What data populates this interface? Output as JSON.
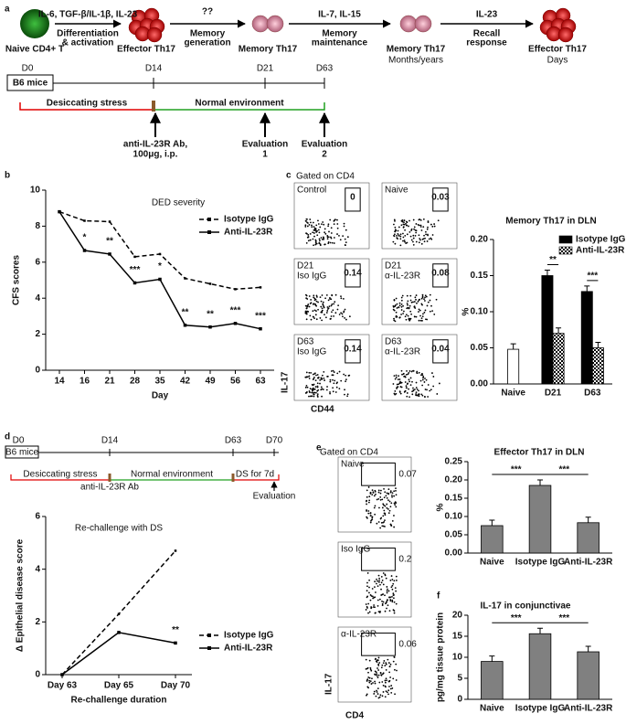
{
  "panel_labels": [
    "a",
    "b",
    "c",
    "d",
    "e",
    "f"
  ],
  "diagram_a": {
    "cells": [
      {
        "label": "Naive CD4+ T"
      },
      {
        "label": "Effector Th17"
      },
      {
        "label": "Memory Th17"
      },
      {
        "label": "Memory Th17",
        "note": "Months/years"
      },
      {
        "label": "Effector Th17",
        "note": "Days"
      }
    ],
    "steps": [
      {
        "above": "IL-6, TGF-β/IL-1β, IL-23",
        "below": [
          "Differentiation",
          "& activation"
        ]
      },
      {
        "above": "??",
        "below": [
          "Memory",
          "generation"
        ]
      },
      {
        "above": "IL-7, IL-15",
        "below": [
          "Memory",
          "maintenance"
        ]
      },
      {
        "above": "IL-23",
        "below": [
          "Recall",
          "response"
        ]
      }
    ],
    "timeline": {
      "days": [
        "D0",
        "D14",
        "D21",
        "D63"
      ],
      "mice": "B6 mice",
      "stress": "Desiccating stress",
      "normal": "Normal environment",
      "events": [
        [
          "anti-IL-23R Ab,",
          "100μg, i.p."
        ],
        [
          "Evaluation",
          "1"
        ],
        [
          "Evaluation",
          "2"
        ]
      ]
    }
  },
  "timeline_d": {
    "days": [
      "D0",
      "D14",
      "D63",
      "D70"
    ],
    "mice": "B6 mice",
    "stress": "Desiccating stress",
    "normal": "Normal environment",
    "rechallenge": "DS for 7d",
    "treatment": "anti-IL-23R Ab",
    "evaluation": "Evaluation"
  },
  "flow_c": {
    "gated": "Gated on CD4",
    "y_label": "IL-17",
    "x_label": "CD44",
    "plots": [
      {
        "labels": [
          "Control"
        ],
        "gate": 0
      },
      {
        "labels": [
          "Naive"
        ],
        "gate": 0.03
      },
      {
        "labels": [
          "D21",
          "Iso IgG"
        ],
        "gate": 0.14
      },
      {
        "labels": [
          "D21",
          "α-IL-23R"
        ],
        "gate": 0.08
      },
      {
        "labels": [
          "D63",
          "Iso IgG"
        ],
        "gate": 0.14
      },
      {
        "labels": [
          "D63",
          "α-IL-23R"
        ],
        "gate": 0.04
      }
    ]
  },
  "flow_e": {
    "gated": "Gated on CD4",
    "y_label": "IL-17",
    "x_label": "CD4",
    "plots": [
      {
        "labels": [
          "Naive"
        ],
        "gate": 0.07
      },
      {
        "labels": [
          "Iso IgG"
        ],
        "gate": 0.2
      },
      {
        "labels": [
          "α-IL-23R"
        ],
        "gate": 0.06
      }
    ]
  },
  "chart_data": [
    {
      "type": "line",
      "title": "DED severity",
      "x_label": "Day",
      "y_label": "CFS scores",
      "categories": [
        "14",
        "16",
        "21",
        "28",
        "35",
        "42",
        "49",
        "56",
        "63"
      ],
      "series": [
        {
          "name": "Isotype IgG",
          "color": "#000000",
          "dashed": true,
          "values": [
            8.8,
            8.3,
            8.25,
            6.3,
            6.45,
            5.1,
            4.8,
            4.5,
            4.6
          ]
        },
        {
          "name": "Anti-IL-23R",
          "color": "#000000",
          "dashed": false,
          "values": [
            8.8,
            6.65,
            6.45,
            4.85,
            5.05,
            2.5,
            2.4,
            2.6,
            2.3
          ]
        }
      ],
      "annotations": [
        null,
        "*",
        "**",
        "***",
        "*",
        "**",
        "**",
        "***",
        "***"
      ],
      "ylim": [
        0,
        10
      ],
      "yticks": [
        0,
        2,
        4,
        6,
        8,
        10
      ]
    },
    {
      "type": "bar",
      "title": "Memory Th17 in DLN",
      "y_label": "%",
      "categories": [
        "Naive",
        "D21",
        "D63"
      ],
      "series": [
        {
          "color": "#ffffff",
          "values": [
            0.048,
            null,
            null
          ]
        },
        {
          "name": "Isotype IgG",
          "color": "#000000",
          "values": [
            null,
            0.15,
            0.128
          ]
        },
        {
          "name": "Anti-IL-23R",
          "color": "#000000",
          "pattern": "checker",
          "values": [
            null,
            0.07,
            0.05
          ]
        }
      ],
      "significance": [
        "**",
        "***"
      ],
      "ylim": [
        0,
        0.2
      ],
      "yticks": [
        {
          "value": 0,
          "label": "0.00"
        },
        {
          "value": 0.05,
          "label": "0.05"
        },
        {
          "value": 0.1,
          "label": "0.10"
        },
        {
          "value": 0.15,
          "label": "0.15"
        },
        {
          "value": 0.2,
          "label": "0.20"
        }
      ]
    },
    {
      "type": "line",
      "title": "Re-challenge with DS",
      "x_label": "Re-challenge duration",
      "y_label": "Δ Epithelial disease score",
      "categories": [
        "Day 63",
        "Day 65",
        "Day 70"
      ],
      "series": [
        {
          "name": "Isotype IgG",
          "color": "#000000",
          "dashed": true,
          "values": [
            0,
            2.3,
            4.7
          ]
        },
        {
          "name": "Anti-IL-23R",
          "color": "#000000",
          "dashed": false,
          "values": [
            0,
            1.6,
            1.2
          ]
        }
      ],
      "annotations": [
        null,
        null,
        "**"
      ],
      "ylim": [
        0,
        6
      ],
      "yticks": [
        0,
        2,
        4,
        6
      ]
    },
    {
      "type": "bar",
      "title": "Effector Th17 in DLN",
      "y_label": "%",
      "categories": [
        "Naive",
        "Isotype IgG",
        "Anti-IL-23R"
      ],
      "series": [
        {
          "color": "#808080",
          "values": [
            0.075,
            0.185,
            0.083
          ]
        }
      ],
      "significance": [
        "***",
        "***"
      ],
      "ylim": [
        0,
        0.25
      ],
      "yticks": [
        {
          "value": 0,
          "label": "0.00"
        },
        {
          "value": 0.05,
          "label": "0.05"
        },
        {
          "value": 0.1,
          "label": "0.10"
        },
        {
          "value": 0.15,
          "label": "0.15"
        },
        {
          "value": 0.2,
          "label": "0.20"
        },
        {
          "value": 0.25,
          "label": "0.25"
        }
      ]
    },
    {
      "type": "bar",
      "title": "IL-17 in conjunctivae",
      "y_label": "pg/mg tissue protein",
      "categories": [
        "Naive",
        "Isotype IgG",
        "Anti-IL-23R"
      ],
      "series": [
        {
          "color": "#808080",
          "values": [
            9,
            15.6,
            11.3
          ]
        }
      ],
      "significance": [
        "***",
        "***"
      ],
      "ylim": [
        0,
        20
      ],
      "yticks": [
        0,
        5,
        10,
        15,
        20
      ]
    }
  ]
}
